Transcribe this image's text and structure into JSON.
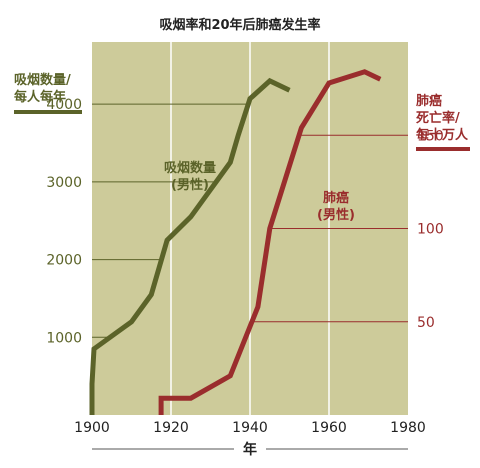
{
  "chart_data": {
    "type": "line",
    "title": "吸烟率和20年后肺癌发生率",
    "xlabel": "年",
    "x_range": [
      1900,
      1980
    ],
    "x_ticks": [
      1900,
      1920,
      1940,
      1960,
      1980
    ],
    "left_axis": {
      "label_lines": [
        "吸烟数量/",
        "每人每年"
      ],
      "range": [
        0,
        4800
      ],
      "ticks": [
        1000,
        2000,
        3000,
        4000
      ],
      "color": "#5b6329"
    },
    "right_axis": {
      "label_lines": [
        "肺癌",
        "死亡率/",
        "每十万人"
      ],
      "range": [
        0,
        200
      ],
      "ticks": [
        50,
        100,
        150
      ],
      "color": "#9a2d2d"
    },
    "grid": "vertical at decades",
    "plot_background": "#cdcb9a",
    "series": [
      {
        "name_lines": [
          "吸烟数量",
          "(男性)"
        ],
        "axis": "left",
        "color": "#5b6329",
        "points": [
          [
            1900,
            0
          ],
          [
            1900,
            400
          ],
          [
            1900.5,
            850
          ],
          [
            1910,
            1200
          ],
          [
            1915,
            1550
          ],
          [
            1919,
            2250
          ],
          [
            1925,
            2550
          ],
          [
            1935,
            3250
          ],
          [
            1937,
            3600
          ],
          [
            1940,
            4070
          ],
          [
            1945,
            4300
          ],
          [
            1950,
            4180
          ]
        ]
      },
      {
        "name_lines": [
          "肺癌",
          "(男性)"
        ],
        "axis": "right",
        "color": "#9a2d2d",
        "points": [
          [
            1917.5,
            0
          ],
          [
            1917.5,
            9
          ],
          [
            1925,
            9
          ],
          [
            1935,
            21
          ],
          [
            1942,
            58
          ],
          [
            1945,
            100
          ],
          [
            1953,
            154
          ],
          [
            1960,
            178
          ],
          [
            1969,
            184
          ],
          [
            1973,
            180
          ]
        ]
      }
    ]
  }
}
